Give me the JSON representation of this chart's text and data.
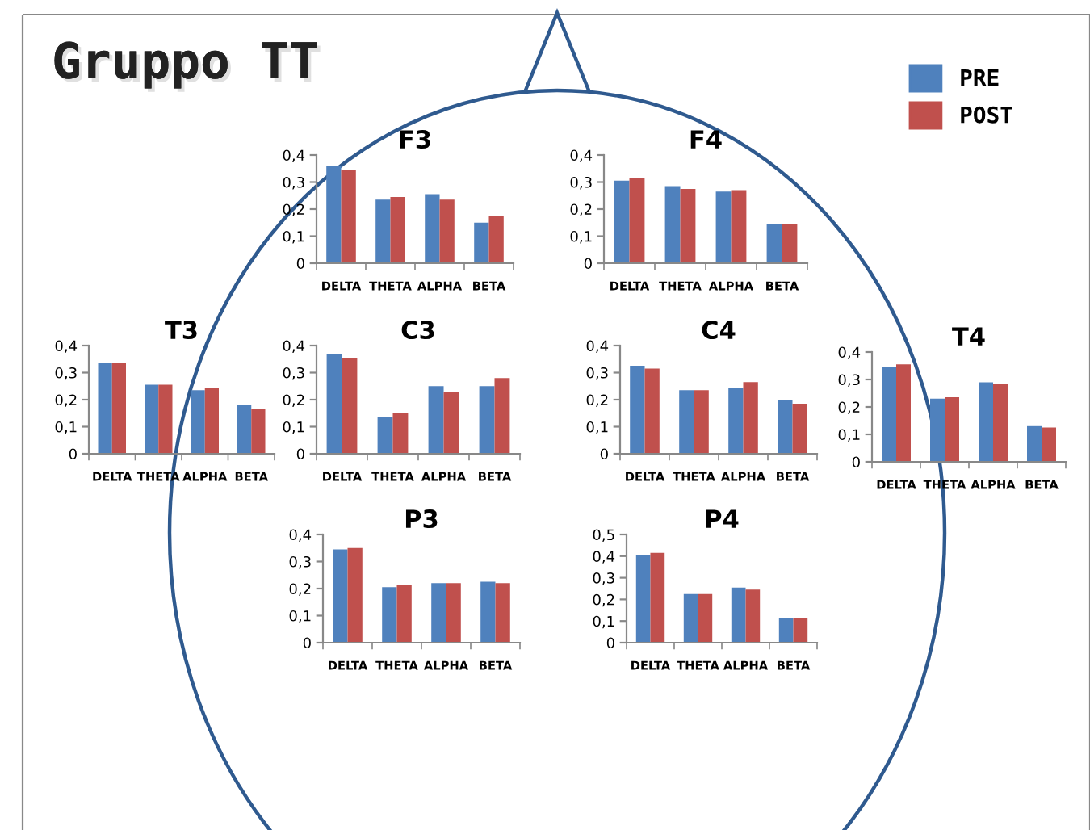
{
  "chart_data": [
    {
      "type": "other",
      "title": "Gruppo TT"
    },
    {
      "type": "bar",
      "title": "F3",
      "categories": [
        "DELTA",
        "THETA",
        "ALPHA",
        "BETA"
      ],
      "series": [
        {
          "name": "PRE",
          "color": "#4f81bd",
          "values": [
            0.36,
            0.235,
            0.255,
            0.15
          ]
        },
        {
          "name": "POST",
          "color": "#c0504d",
          "values": [
            0.345,
            0.245,
            0.235,
            0.175
          ]
        }
      ],
      "ylim": [
        0,
        0.4
      ],
      "yticks": [
        0,
        {
          "value": 0.1,
          "label": "0,1"
        },
        {
          "value": 0.2,
          "label": "0,2"
        },
        {
          "value": 0.3,
          "label": "0,3"
        },
        {
          "value": 0.4,
          "label": "0,4"
        }
      ],
      "grid": false,
      "legend": "top right"
    },
    {
      "type": "bar",
      "title": "F4",
      "categories": [
        "DELTA",
        "THETA",
        "ALPHA",
        "BETA"
      ],
      "series": [
        {
          "color": "#4f81bd",
          "values": [
            0.305,
            0.285,
            0.265,
            0.145
          ]
        },
        {
          "color": "#c0504d",
          "values": [
            0.315,
            0.275,
            0.27,
            0.145
          ]
        }
      ],
      "ylim": [
        0,
        0.4
      ],
      "yticks": [
        0,
        {
          "value": 0.1,
          "label": "0,1"
        },
        {
          "value": 0.2,
          "label": "0,2"
        },
        {
          "value": 0.3,
          "label": "0,3"
        },
        {
          "value": 0.4,
          "label": "0,4"
        }
      ],
      "grid": false,
      "legend": false
    },
    {
      "type": "bar",
      "title": "T3",
      "categories": [
        "DELTA",
        "THETA",
        "ALPHA",
        "BETA"
      ],
      "series": [
        {
          "color": "#4f81bd",
          "values": [
            0.335,
            0.255,
            0.235,
            0.18
          ]
        },
        {
          "color": "#c0504d",
          "values": [
            0.335,
            0.255,
            0.245,
            0.165
          ]
        }
      ],
      "ylim": [
        0,
        0.4
      ],
      "yticks": [
        0,
        {
          "value": 0.1,
          "label": "0,1"
        },
        {
          "value": 0.2,
          "label": "0,2"
        },
        {
          "value": 0.3,
          "label": "0,3"
        },
        {
          "value": 0.4,
          "label": "0,4"
        }
      ],
      "grid": false,
      "legend": false
    },
    {
      "type": "bar",
      "title": "C3",
      "categories": [
        "DELTA",
        "THETA",
        "ALPHA",
        "BETA"
      ],
      "series": [
        {
          "color": "#4f81bd",
          "values": [
            0.37,
            0.135,
            0.25,
            0.25
          ]
        },
        {
          "color": "#c0504d",
          "values": [
            0.355,
            0.15,
            0.23,
            0.28
          ]
        }
      ],
      "ylim": [
        0,
        0.4
      ],
      "yticks": [
        0,
        {
          "value": 0.1,
          "label": "0,1"
        },
        {
          "value": 0.2,
          "label": "0,2"
        },
        {
          "value": 0.3,
          "label": "0,3"
        },
        {
          "value": 0.4,
          "label": "0,4"
        }
      ],
      "grid": false,
      "legend": false
    },
    {
      "type": "bar",
      "title": "C4",
      "categories": [
        "DELTA",
        "THETA",
        "ALPHA",
        "BETA"
      ],
      "series": [
        {
          "color": "#4f81bd",
          "values": [
            0.325,
            0.235,
            0.245,
            0.2
          ]
        },
        {
          "color": "#c0504d",
          "values": [
            0.315,
            0.235,
            0.265,
            0.185
          ]
        }
      ],
      "ylim": [
        0,
        0.4
      ],
      "yticks": [
        0,
        {
          "value": 0.1,
          "label": "0,1"
        },
        {
          "value": 0.2,
          "label": "0,2"
        },
        {
          "value": 0.3,
          "label": "0,3"
        },
        {
          "value": 0.4,
          "label": "0,4"
        }
      ],
      "grid": false,
      "legend": false
    },
    {
      "type": "bar",
      "title": "T4",
      "categories": [
        "DELTA",
        "THETA",
        "ALPHA",
        "BETA"
      ],
      "series": [
        {
          "color": "#4f81bd",
          "values": [
            0.345,
            0.23,
            0.29,
            0.13
          ]
        },
        {
          "color": "#c0504d",
          "values": [
            0.355,
            0.235,
            0.285,
            0.125
          ]
        }
      ],
      "ylim": [
        0,
        0.4
      ],
      "yticks": [
        0,
        {
          "value": 0.1,
          "label": "0,1"
        },
        {
          "value": 0.2,
          "label": "0,2"
        },
        {
          "value": 0.3,
          "label": "0,3"
        },
        {
          "value": 0.4,
          "label": "0,4"
        }
      ],
      "grid": false,
      "legend": false
    },
    {
      "type": "bar",
      "title": "P3",
      "categories": [
        "DELTA",
        "THETA",
        "ALPHA",
        "BETA"
      ],
      "series": [
        {
          "color": "#4f81bd",
          "values": [
            0.345,
            0.205,
            0.22,
            0.225
          ]
        },
        {
          "color": "#c0504d",
          "values": [
            0.35,
            0.215,
            0.22,
            0.22
          ]
        }
      ],
      "ylim": [
        0,
        0.4
      ],
      "yticks": [
        0,
        {
          "value": 0.1,
          "label": "0,1"
        },
        {
          "value": 0.2,
          "label": "0,2"
        },
        {
          "value": 0.3,
          "label": "0,3"
        },
        {
          "value": 0.4,
          "label": "0,4"
        }
      ],
      "grid": false,
      "legend": false
    },
    {
      "type": "bar",
      "title": "P4",
      "categories": [
        "DELTA",
        "THETA",
        "ALPHA",
        "BETA"
      ],
      "series": [
        {
          "color": "#4f81bd",
          "values": [
            0.405,
            0.225,
            0.255,
            0.115
          ]
        },
        {
          "color": "#c0504d",
          "values": [
            0.415,
            0.225,
            0.245,
            0.115
          ]
        }
      ],
      "ylim": [
        0,
        0.5
      ],
      "yticks": [
        0,
        {
          "value": 0.1,
          "label": "0,1"
        },
        {
          "value": 0.2,
          "label": "0,2"
        },
        {
          "value": 0.3,
          "label": "0,3"
        },
        {
          "value": 0.4,
          "label": "0,4"
        },
        {
          "value": 0.5,
          "label": "0,5"
        }
      ],
      "grid": false,
      "legend": false
    }
  ]
}
